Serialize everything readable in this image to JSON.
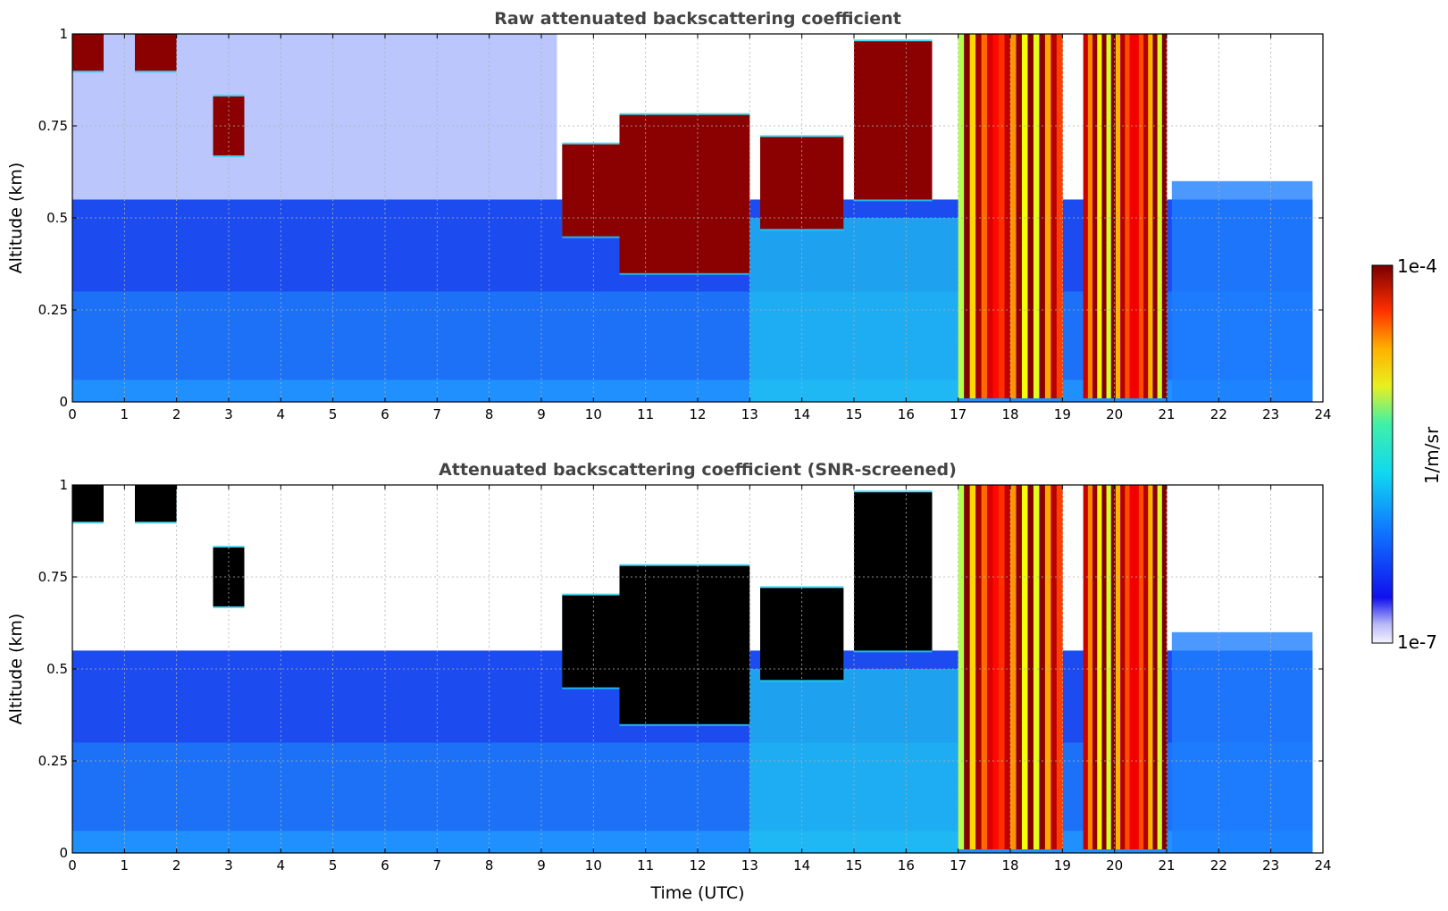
{
  "chart_data": [
    {
      "type": "heatmap",
      "title": "Raw attenuated backscattering coefficient",
      "xlabel": "",
      "ylabel": "Altitude (km)",
      "xlim": [
        0,
        24
      ],
      "ylim": [
        0,
        1
      ],
      "x_ticks": [
        "0",
        "1",
        "2",
        "3",
        "4",
        "5",
        "6",
        "7",
        "8",
        "9",
        "10",
        "11",
        "12",
        "13",
        "14",
        "15",
        "16",
        "17",
        "18",
        "19",
        "20",
        "21",
        "22",
        "23",
        "24"
      ],
      "y_ticks": [
        "0",
        "0.25",
        "0.5",
        "0.75",
        "1"
      ],
      "grid": true,
      "colorscale": "jet (log scale)",
      "masked": false,
      "cloud_layers": [
        {
          "t": [
            0.0,
            0.6
          ],
          "base_km": 0.9,
          "top_km": 1.0
        },
        {
          "t": [
            1.2,
            2.0
          ],
          "base_km": 0.9,
          "top_km": 1.0
        },
        {
          "t": [
            2.7,
            3.3
          ],
          "base_km": 0.67,
          "top_km": 0.83
        },
        {
          "t": [
            9.4,
            10.5
          ],
          "base_km": 0.45,
          "top_km": 0.7
        },
        {
          "t": [
            10.5,
            13.0
          ],
          "base_km": 0.35,
          "top_km": 0.78
        },
        {
          "t": [
            13.2,
            14.8
          ],
          "base_km": 0.47,
          "top_km": 0.72
        },
        {
          "t": [
            15.0,
            16.5
          ],
          "base_km": 0.55,
          "top_km": 0.98
        }
      ],
      "precipitation_periods_utc": [
        [
          17.0,
          19.0
        ],
        [
          19.4,
          21.0
        ]
      ]
    },
    {
      "type": "heatmap",
      "title": "Attenuated backscattering coefficient (SNR-screened)",
      "xlabel": "Time (UTC)",
      "ylabel": "Altitude (km)",
      "xlim": [
        0,
        24
      ],
      "ylim": [
        0,
        1
      ],
      "x_ticks": [
        "0",
        "1",
        "2",
        "3",
        "4",
        "5",
        "6",
        "7",
        "8",
        "9",
        "10",
        "11",
        "12",
        "13",
        "14",
        "15",
        "16",
        "17",
        "18",
        "19",
        "20",
        "21",
        "22",
        "23",
        "24"
      ],
      "y_ticks": [
        "0",
        "0.25",
        "0.5",
        "0.75",
        "1"
      ],
      "grid": true,
      "colorscale": "jet (log scale)",
      "masked": true,
      "colorbar": {
        "label": "1/m/sr",
        "min_label": "1e-7",
        "max_label": "1e-4",
        "scale": "log"
      }
    }
  ]
}
